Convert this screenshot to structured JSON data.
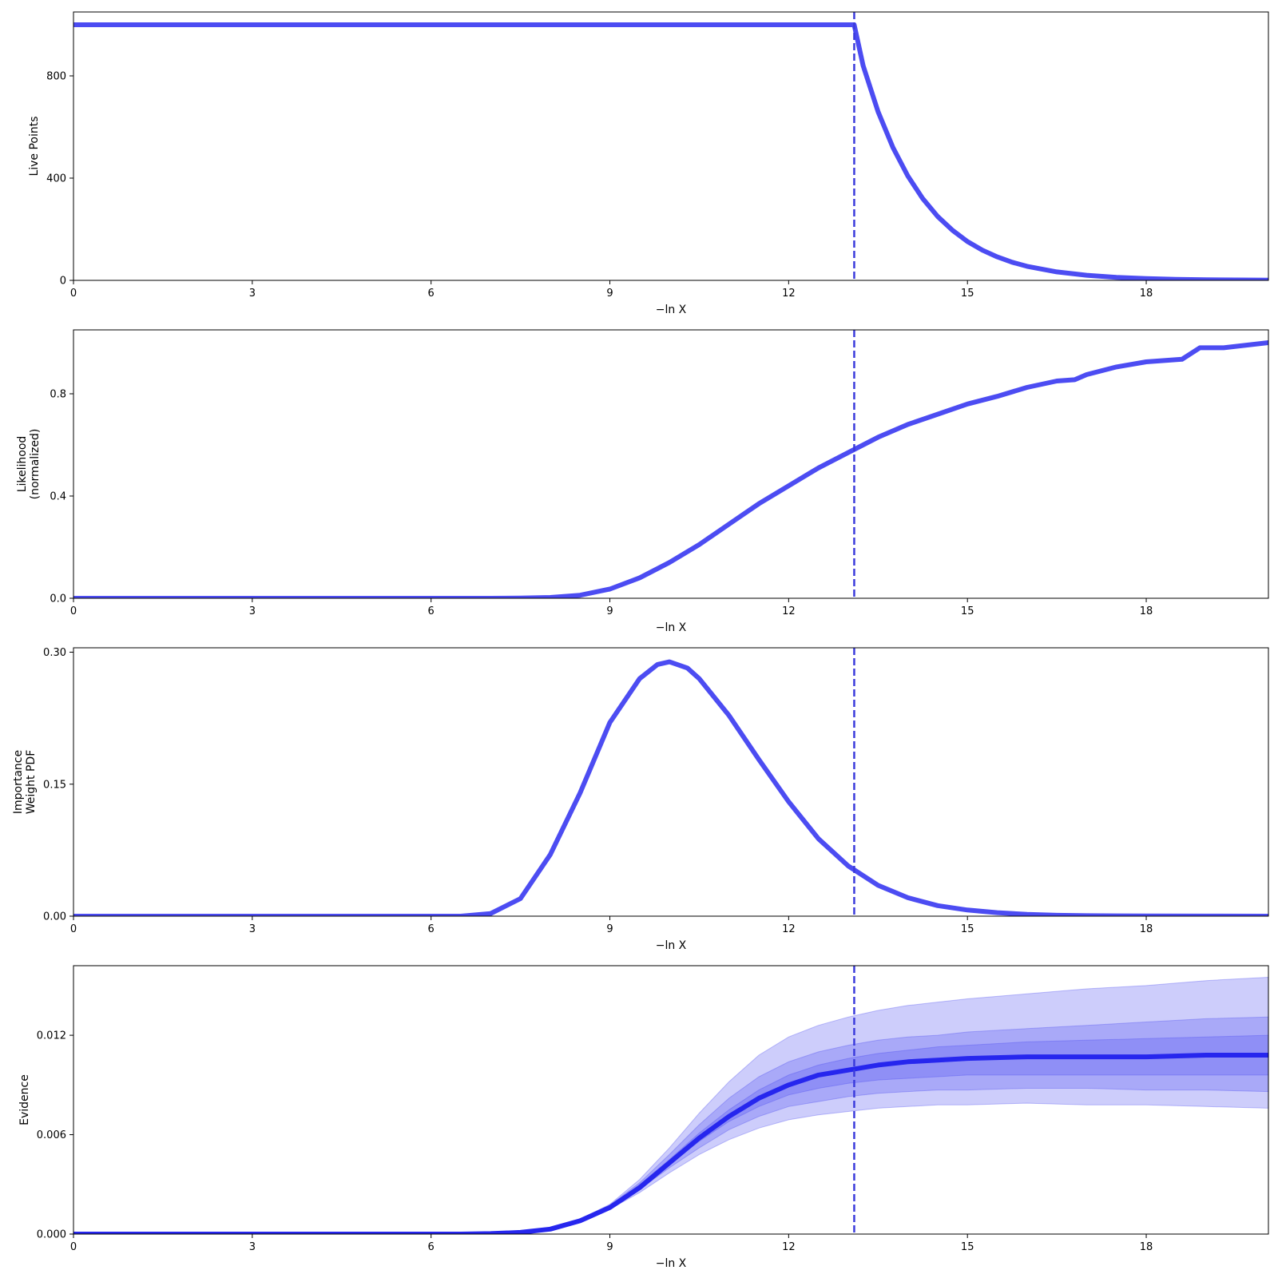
{
  "chart_data": [
    {
      "type": "line",
      "ylabel": [
        "Live Points"
      ],
      "xlabel": "−ln X",
      "xlim": [
        0,
        20.05
      ],
      "ylim": [
        0,
        1050
      ],
      "xticks": [
        0,
        3,
        6,
        9,
        12,
        15,
        18
      ],
      "yticks": [
        0,
        400,
        800
      ],
      "ytick_labels": [
        "0",
        "400",
        "800"
      ],
      "vline": 13.1,
      "series": [
        {
          "x": [
            0,
            13.1,
            13.1,
            13.25,
            13.5,
            13.75,
            14.0,
            14.25,
            14.5,
            14.75,
            15.0,
            15.25,
            15.5,
            15.75,
            16.0,
            16.5,
            17.0,
            17.5,
            18.0,
            18.5,
            19.0,
            19.5,
            20.05
          ],
          "y": [
            1000,
            1000,
            1000,
            840,
            660,
            520,
            408,
            320,
            250,
            196,
            152,
            118,
            92,
            71,
            55,
            33,
            20,
            12,
            7,
            4,
            2.5,
            1.5,
            1
          ]
        }
      ],
      "color": "#4c4cf2"
    },
    {
      "type": "line",
      "ylabel": [
        "Likelihood",
        "(normalized)"
      ],
      "xlabel": "−ln X",
      "xlim": [
        0,
        20.05
      ],
      "ylim": [
        0,
        1.05
      ],
      "xticks": [
        0,
        3,
        6,
        9,
        12,
        15,
        18
      ],
      "yticks": [
        0,
        0.4,
        0.8
      ],
      "ytick_labels": [
        "0.0",
        "0.4",
        "0.8"
      ],
      "vline": 13.1,
      "series": [
        {
          "x": [
            0,
            7.0,
            7.5,
            8.0,
            8.5,
            9.0,
            9.5,
            10.0,
            10.5,
            11.0,
            11.5,
            12.0,
            12.5,
            13.0,
            13.5,
            14.0,
            14.5,
            15.0,
            15.5,
            16.0,
            16.5,
            16.8,
            17.0,
            17.5,
            18.0,
            18.6,
            18.9,
            19.3,
            20.05
          ],
          "y": [
            0,
            0,
            0.0005,
            0.003,
            0.012,
            0.036,
            0.08,
            0.14,
            0.21,
            0.29,
            0.37,
            0.44,
            0.51,
            0.57,
            0.63,
            0.68,
            0.72,
            0.76,
            0.79,
            0.825,
            0.85,
            0.855,
            0.875,
            0.905,
            0.925,
            0.935,
            0.98,
            0.98,
            1.0
          ]
        }
      ],
      "color": "#4c4cf2"
    },
    {
      "type": "line",
      "ylabel": [
        "Importance",
        "Weight PDF"
      ],
      "xlabel": "−ln X",
      "xlim": [
        0,
        20.05
      ],
      "ylim": [
        0,
        0.305
      ],
      "xticks": [
        0,
        3,
        6,
        9,
        12,
        15,
        18
      ],
      "yticks": [
        0,
        0.15,
        0.3
      ],
      "ytick_labels": [
        "0.00",
        "0.15",
        "0.30"
      ],
      "vline": 13.1,
      "series": [
        {
          "x": [
            0,
            6.5,
            7.0,
            7.5,
            8.0,
            8.5,
            9.0,
            9.5,
            9.8,
            10.0,
            10.3,
            10.5,
            11.0,
            11.5,
            12.0,
            12.5,
            13.0,
            13.5,
            14.0,
            14.5,
            15.0,
            15.5,
            16.0,
            16.5,
            17.0,
            18.0,
            19.0,
            20.05
          ],
          "y": [
            0,
            0,
            0.003,
            0.02,
            0.07,
            0.14,
            0.22,
            0.27,
            0.286,
            0.289,
            0.282,
            0.27,
            0.228,
            0.178,
            0.13,
            0.088,
            0.057,
            0.035,
            0.021,
            0.012,
            0.007,
            0.004,
            0.002,
            0.001,
            0.0005,
            0.0002,
            0.0001,
            0
          ]
        }
      ],
      "color": "#4c4cf2"
    },
    {
      "type": "area",
      "ylabel": [
        "Evidence"
      ],
      "xlabel": "−ln X",
      "xlim": [
        0,
        20.05
      ],
      "ylim": [
        0,
        0.0162
      ],
      "xticks": [
        0,
        3,
        6,
        9,
        12,
        15,
        18
      ],
      "yticks": [
        0,
        0.006,
        0.012
      ],
      "ytick_labels": [
        "0.000",
        "0.006",
        "0.012"
      ],
      "vline": 13.1,
      "x": [
        0,
        6.5,
        7.0,
        7.5,
        8.0,
        8.5,
        9.0,
        9.5,
        10.0,
        10.5,
        11.0,
        11.5,
        12.0,
        12.5,
        13.0,
        13.5,
        14.0,
        14.5,
        15.0,
        16.0,
        17.0,
        18.0,
        19.0,
        20.05
      ],
      "median": [
        0,
        0,
        3e-05,
        0.0001,
        0.0003,
        0.0008,
        0.0016,
        0.0028,
        0.0043,
        0.0058,
        0.0071,
        0.0082,
        0.009,
        0.0096,
        0.0099,
        0.0102,
        0.0104,
        0.0105,
        0.0106,
        0.0107,
        0.0107,
        0.0107,
        0.0108,
        0.0108
      ],
      "bands": [
        {
          "lower": [
            0,
            0,
            3e-05,
            0.0001,
            0.0003,
            0.0007,
            0.0015,
            0.0025,
            0.0037,
            0.0048,
            0.0057,
            0.0064,
            0.0069,
            0.0072,
            0.0074,
            0.0076,
            0.0077,
            0.0078,
            0.0078,
            0.0079,
            0.0078,
            0.0078,
            0.0077,
            0.0076
          ],
          "upper": [
            0,
            0,
            3e-05,
            0.0001,
            0.0003,
            0.0009,
            0.0018,
            0.0033,
            0.0052,
            0.0073,
            0.0092,
            0.0108,
            0.0119,
            0.0126,
            0.0131,
            0.0135,
            0.0138,
            0.014,
            0.0142,
            0.0145,
            0.0148,
            0.015,
            0.0153,
            0.0155
          ],
          "opacity": 0.28
        },
        {
          "lower": [
            0,
            0,
            3e-05,
            0.0001,
            0.0003,
            0.00075,
            0.00155,
            0.0027,
            0.004,
            0.0052,
            0.0063,
            0.0071,
            0.0077,
            0.008,
            0.0083,
            0.0085,
            0.0086,
            0.0087,
            0.0087,
            0.0088,
            0.0088,
            0.0087,
            0.0087,
            0.0086
          ],
          "upper": [
            0,
            0,
            3e-05,
            0.0001,
            0.0003,
            0.00085,
            0.00175,
            0.0031,
            0.0048,
            0.0066,
            0.0082,
            0.0095,
            0.0104,
            0.011,
            0.0114,
            0.0117,
            0.0119,
            0.012,
            0.0122,
            0.0124,
            0.0126,
            0.0128,
            0.013,
            0.0131
          ],
          "opacity": 0.28
        },
        {
          "lower": [
            0,
            0,
            3e-05,
            0.0001,
            0.0003,
            0.00078,
            0.0016,
            0.0028,
            0.0042,
            0.0056,
            0.0068,
            0.0077,
            0.0084,
            0.0088,
            0.0091,
            0.0093,
            0.0094,
            0.0095,
            0.0096,
            0.0096,
            0.0096,
            0.0096,
            0.0096,
            0.0096
          ],
          "upper": [
            0,
            0,
            3e-05,
            0.0001,
            0.0003,
            0.00082,
            0.0017,
            0.003,
            0.0045,
            0.0061,
            0.0075,
            0.0087,
            0.0096,
            0.0102,
            0.0106,
            0.0109,
            0.0111,
            0.0113,
            0.0114,
            0.0116,
            0.0117,
            0.0118,
            0.0119,
            0.012
          ],
          "opacity": 0.28
        }
      ],
      "color": "#4c4cf2",
      "median_color": "#2626ee"
    }
  ]
}
